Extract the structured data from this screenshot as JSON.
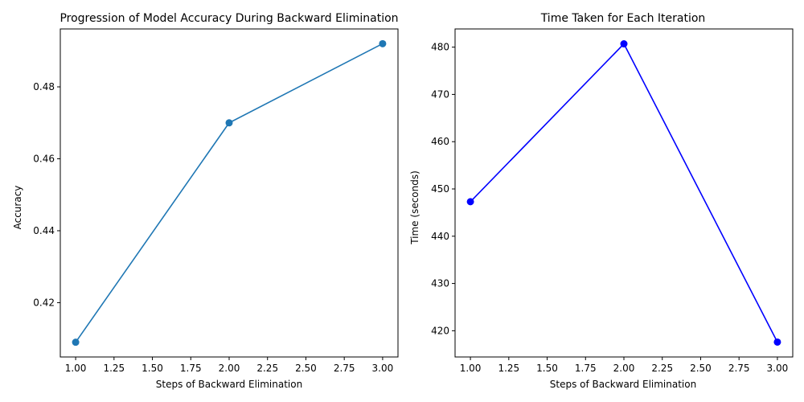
{
  "chart_data": [
    {
      "type": "line",
      "title": "Progression of Model Accuracy During Backward Elimination",
      "xlabel": "Steps of Backward Elimination",
      "ylabel": "Accuracy",
      "x": [
        1,
        2,
        3
      ],
      "series": [
        {
          "values": [
            0.409,
            0.47,
            0.492
          ],
          "color": "#1f77b4",
          "marker": "circle"
        }
      ],
      "xlim": [
        0.9,
        3.1
      ],
      "ylim": [
        0.4049,
        0.4961
      ],
      "xticks": [
        1.0,
        1.25,
        1.5,
        1.75,
        2.0,
        2.25,
        2.5,
        2.75,
        3.0
      ],
      "xtick_labels": [
        "1.00",
        "1.25",
        "1.50",
        "1.75",
        "2.00",
        "2.25",
        "2.50",
        "2.75",
        "3.00"
      ],
      "yticks": [
        0.42,
        0.44,
        0.46,
        0.48
      ],
      "ytick_labels": [
        "0.42",
        "0.44",
        "0.46",
        "0.48"
      ],
      "grid": false,
      "legend": "none"
    },
    {
      "type": "line",
      "title": "Time Taken for Each Iteration",
      "xlabel": "Steps of Backward Elimination",
      "ylabel": "Time (seconds)",
      "x": [
        1,
        2,
        3
      ],
      "series": [
        {
          "values": [
            447.3,
            480.7,
            417.6
          ],
          "color": "#0000ff",
          "marker": "circle"
        }
      ],
      "xlim": [
        0.9,
        3.1
      ],
      "ylim": [
        414.45,
        483.85
      ],
      "xticks": [
        1.0,
        1.25,
        1.5,
        1.75,
        2.0,
        2.25,
        2.5,
        2.75,
        3.0
      ],
      "xtick_labels": [
        "1.00",
        "1.25",
        "1.50",
        "1.75",
        "2.00",
        "2.25",
        "2.50",
        "2.75",
        "3.00"
      ],
      "yticks": [
        420,
        430,
        440,
        450,
        460,
        470,
        480
      ],
      "ytick_labels": [
        "420",
        "430",
        "440",
        "450",
        "460",
        "470",
        "480"
      ],
      "grid": false,
      "legend": "none"
    }
  ]
}
